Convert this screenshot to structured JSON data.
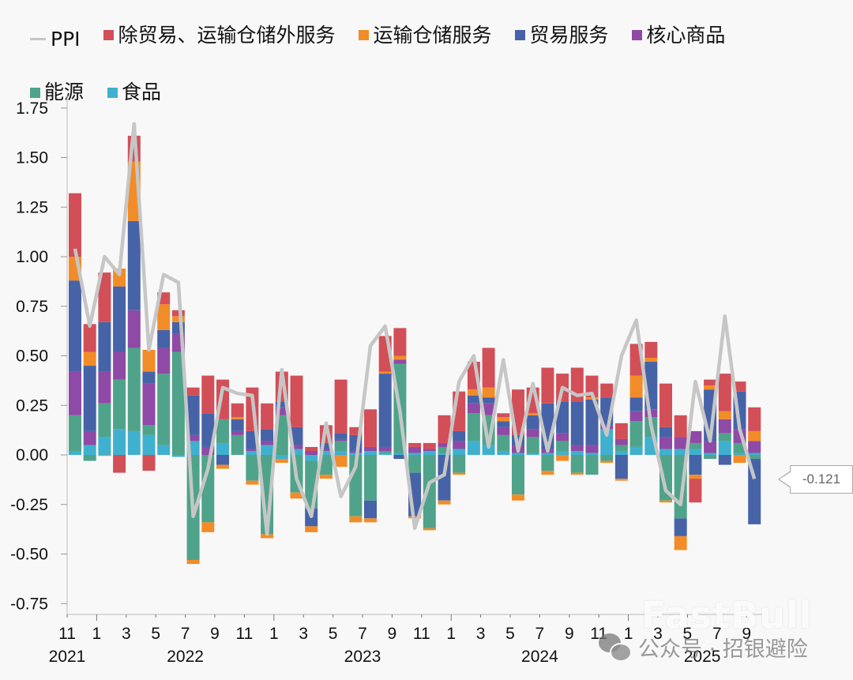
{
  "legend": {
    "ppi": "PPI",
    "other_services": "除贸易、运输仓储外服务",
    "transport": "运输仓储服务",
    "trade": "贸易服务",
    "core_goods": "核心商品",
    "energy": "能源",
    "food": "食品"
  },
  "colors": {
    "ppi": "#c6c6c6",
    "other_services": "#d24f58",
    "transport": "#f28c28",
    "trade": "#4663a8",
    "core_goods": "#8e4aa6",
    "energy": "#4fa38a",
    "food": "#40b0cf"
  },
  "callout": {
    "value": "-0.121"
  },
  "watermark": {
    "brand": "FastBull",
    "wechat": "公众号 · 招银避险"
  },
  "chart_data": {
    "type": "bar",
    "stacked": true,
    "title": "",
    "xlabel": "",
    "ylabel": "",
    "ylim": [
      -0.75,
      1.75
    ],
    "yticks": [
      "1.75",
      "1.50",
      "1.25",
      "1.00",
      "0.75",
      "0.50",
      "0.25",
      "0.00",
      "-0.25",
      "-0.50",
      "-0.75"
    ],
    "xtick_labels": [
      "11",
      "1",
      "3",
      "5",
      "7",
      "9",
      "11",
      "1",
      "3",
      "5",
      "7",
      "9",
      "11",
      "1",
      "3",
      "5",
      "7",
      "9",
      "11",
      "1",
      "3",
      "5",
      "7",
      "9"
    ],
    "year_labels": [
      {
        "label": "2021",
        "index": 0
      },
      {
        "label": "2022",
        "index": 8
      },
      {
        "label": "2023",
        "index": 20
      },
      {
        "label": "2024",
        "index": 32
      },
      {
        "label": "2025",
        "index": 43
      }
    ],
    "grid": false,
    "legend_position": "top",
    "categories": [
      "2021-11",
      "2021-12",
      "2022-01",
      "2022-02",
      "2022-03",
      "2022-04",
      "2022-05",
      "2022-06",
      "2022-07",
      "2022-08",
      "2022-09",
      "2022-10",
      "2022-11",
      "2022-12",
      "2023-01",
      "2023-02",
      "2023-03",
      "2023-04",
      "2023-05",
      "2023-06",
      "2023-07",
      "2023-08",
      "2023-09",
      "2023-10",
      "2023-11",
      "2023-12",
      "2024-01",
      "2024-02",
      "2024-03",
      "2024-04",
      "2024-05",
      "2024-06",
      "2024-07",
      "2024-08",
      "2024-09",
      "2024-10",
      "2024-11",
      "2024-12",
      "2025-01",
      "2025-02",
      "2025-03",
      "2025-04",
      "2025-05",
      "2025-06",
      "2025-07",
      "2025-08",
      "2025-09"
    ],
    "series": [
      {
        "name": "食品",
        "key": "food",
        "values": [
          0.02,
          0.05,
          0.09,
          0.13,
          0.12,
          0.1,
          0.05,
          -0.01,
          0.07,
          0.0,
          0.06,
          0.0,
          0.02,
          0.05,
          -0.02,
          0.03,
          -0.03,
          0.02,
          0.02,
          0.01,
          0.02,
          0.01,
          0.01,
          0.01,
          0.02,
          0.01,
          0.03,
          0.07,
          0.05,
          0.02,
          0.01,
          0.01,
          0.01,
          0.02,
          0.02,
          0.01,
          0.13,
          0.02,
          0.04,
          0.09,
          0.03,
          0.03,
          0.03,
          0.01,
          0.07,
          0.01,
          0.01
        ]
      },
      {
        "name": "能源",
        "key": "energy",
        "values": [
          0.18,
          -0.03,
          0.17,
          0.25,
          0.42,
          0.05,
          0.36,
          0.52,
          -0.53,
          -0.34,
          0.12,
          0.1,
          -0.13,
          -0.4,
          0.2,
          -0.19,
          -0.24,
          -0.1,
          0.05,
          -0.31,
          -0.23,
          0.01,
          0.45,
          -0.09,
          -0.37,
          0.03,
          -0.09,
          0.14,
          0.15,
          0.08,
          -0.2,
          0.08,
          -0.08,
          0.05,
          -0.09,
          -0.1,
          -0.03,
          0.03,
          0.13,
          0.1,
          -0.23,
          -0.32,
          0.03,
          -0.02,
          0.04,
          0.05,
          -0.02
        ]
      },
      {
        "name": "核心商品",
        "key": "core_goods",
        "values": [
          0.22,
          0.07,
          0.16,
          0.14,
          0.19,
          0.21,
          0.13,
          0.09,
          0.03,
          0.04,
          0.0,
          0.02,
          0.01,
          0.02,
          0.04,
          0.02,
          0.02,
          0.01,
          0.01,
          0.01,
          0.02,
          0.02,
          0.02,
          0.03,
          0.01,
          0.02,
          0.04,
          0.05,
          0.06,
          0.04,
          0.04,
          0.04,
          0.02,
          0.04,
          0.03,
          0.04,
          0.02,
          0.03,
          0.05,
          0.04,
          0.06,
          0.06,
          0.06,
          0.06,
          0.07,
          0.07,
          0.06
        ]
      },
      {
        "name": "贸易服务",
        "key": "trade",
        "values": [
          0.46,
          0.33,
          0.25,
          0.33,
          0.45,
          0.06,
          0.09,
          0.06,
          0.2,
          0.17,
          -0.05,
          0.06,
          0.09,
          0.06,
          0.03,
          0.09,
          -0.09,
          0.03,
          0.03,
          0.08,
          -0.09,
          0.37,
          -0.02,
          -0.22,
          0.0,
          -0.23,
          0.05,
          0.04,
          0.03,
          0.03,
          0.05,
          0.07,
          0.23,
          0.16,
          0.22,
          0.23,
          0.14,
          -0.12,
          0.07,
          0.24,
          0.05,
          -0.09,
          -0.1,
          0.26,
          -0.05,
          0.19,
          -0.33
        ]
      },
      {
        "name": "运输仓储服务",
        "key": "transport",
        "values": [
          0.12,
          0.07,
          -0.005,
          0.09,
          0.3,
          0.11,
          0.13,
          0.03,
          -0.02,
          -0.05,
          -0.02,
          0.01,
          -0.02,
          -0.02,
          -0.02,
          -0.03,
          -0.03,
          -0.02,
          -0.06,
          -0.03,
          -0.02,
          0.01,
          0.02,
          -0.01,
          -0.01,
          -0.02,
          -0.01,
          0.03,
          0.05,
          0.02,
          -0.03,
          0.01,
          -0.02,
          -0.03,
          -0.01,
          0.01,
          -0.01,
          -0.01,
          0.11,
          0.02,
          -0.01,
          -0.07,
          -0.02,
          0.02,
          0.04,
          -0.04,
          0.05
        ]
      },
      {
        "name": "除贸易、运输仓储外服务",
        "key": "other_services",
        "values": [
          0.32,
          0.14,
          0.25,
          -0.09,
          0.13,
          -0.08,
          0.06,
          0.03,
          0.04,
          0.19,
          0.2,
          0.07,
          0.22,
          0.13,
          0.15,
          0.26,
          0.02,
          0.09,
          0.27,
          0.04,
          0.19,
          0.18,
          0.14,
          0.02,
          0.03,
          0.14,
          0.2,
          0.14,
          0.2,
          0.02,
          0.23,
          0.13,
          0.18,
          0.14,
          0.17,
          0.11,
          0.07,
          0.08,
          0.16,
          0.08,
          0.22,
          0.11,
          -0.12,
          0.03,
          0.19,
          0.05,
          0.12
        ]
      },
      {
        "name": "PPI",
        "key": "ppi",
        "type": "line",
        "values": [
          1.04,
          0.65,
          1.0,
          0.91,
          1.67,
          0.53,
          0.91,
          0.87,
          -0.31,
          -0.07,
          0.34,
          0.31,
          0.3,
          -0.4,
          0.43,
          -0.12,
          -0.31,
          0.16,
          -0.21,
          -0.06,
          0.55,
          0.65,
          0.22,
          -0.37,
          -0.14,
          -0.1,
          0.37,
          0.5,
          0.04,
          0.48,
          0.02,
          0.36,
          0.02,
          0.34,
          0.3,
          0.31,
          0.1,
          0.5,
          0.68,
          0.15,
          -0.18,
          -0.25,
          0.37,
          0.07,
          0.7,
          0.13,
          -0.121
        ]
      }
    ],
    "annotations": [
      {
        "label": "-0.121",
        "category": "2025-09",
        "series": "PPI"
      }
    ]
  }
}
